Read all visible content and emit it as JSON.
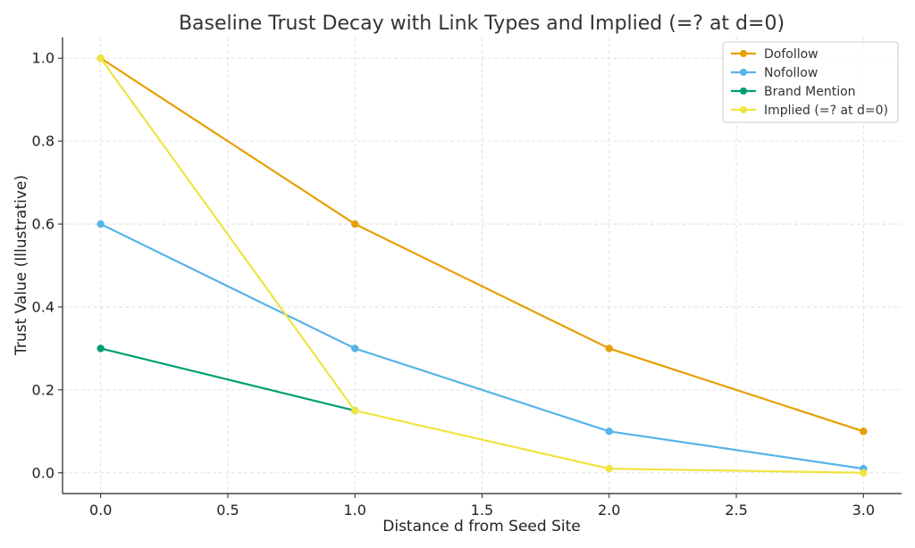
{
  "chart_data": {
    "type": "line",
    "title": "Baseline Trust Decay with Link Types and Implied (=? at d=0)",
    "xlabel": "Distance d from Seed Site",
    "ylabel": "Trust Value (Illustrative)",
    "xlim": [
      -0.15,
      3.15
    ],
    "ylim": [
      -0.05,
      1.05
    ],
    "xticks": [
      "0.0",
      "0.5",
      "1.0",
      "1.5",
      "2.0",
      "2.5",
      "3.0"
    ],
    "yticks": [
      "0.0",
      "0.2",
      "0.4",
      "0.6",
      "0.8",
      "1.0"
    ],
    "grid": true,
    "legend_position": "top-right",
    "series": [
      {
        "name": "Dofollow",
        "color": "#E69F00",
        "x": [
          0,
          1,
          2,
          3
        ],
        "y": [
          1.0,
          0.6,
          0.3,
          0.1
        ]
      },
      {
        "name": "Nofollow",
        "color": "#56B4E9",
        "x": [
          0,
          1,
          2,
          3
        ],
        "y": [
          0.6,
          0.3,
          0.1,
          0.01
        ]
      },
      {
        "name": "Brand Mention",
        "color": "#009E73",
        "x": [
          0,
          1
        ],
        "y": [
          0.3,
          0.15
        ]
      },
      {
        "name": "Implied (=? at d=0)",
        "color": "#F0E442",
        "x": [
          0,
          1,
          2,
          3
        ],
        "y": [
          1.0,
          0.15,
          0.01,
          0.0
        ]
      }
    ]
  }
}
